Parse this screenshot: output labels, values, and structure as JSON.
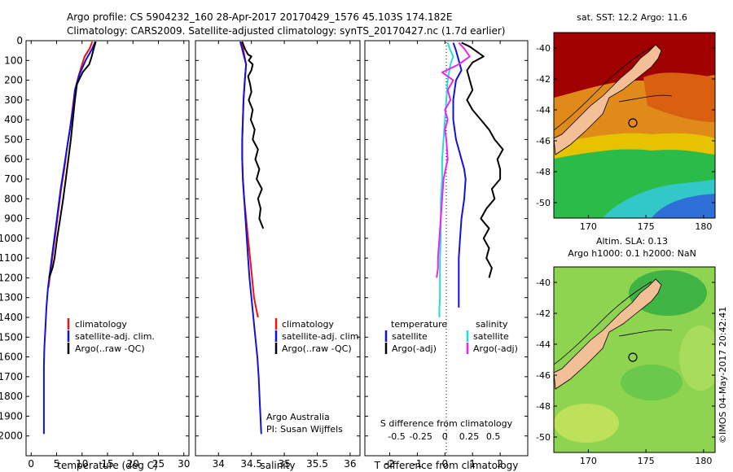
{
  "header": {
    "line1": "Argo profile: CS 5904232_160 28-Apr-2017 20170429_1576 45.103S 174.182E",
    "line2": "Climatology: CARS2009. Satellite-adjusted climatology: synTS_20170427.nc (1.7d earlier)"
  },
  "colors": {
    "climatology": "#ee1111",
    "satellite_adj": "#1111dd",
    "argo": "#000000",
    "sal_satellite": "#22dddd",
    "sal_argo": "#ee22ee"
  },
  "chart_data": [
    {
      "id": "temperature",
      "type": "line",
      "xlabel": "temperature (deg C)",
      "xlim": [
        -1,
        31
      ],
      "xticks": [
        0,
        5,
        10,
        15,
        20,
        25,
        30
      ],
      "ylim": [
        2100,
        0
      ],
      "yticks": [
        0,
        100,
        200,
        300,
        400,
        500,
        600,
        700,
        800,
        900,
        1000,
        1100,
        1200,
        1300,
        1400,
        1500,
        1600,
        1700,
        1800,
        1900,
        2000
      ],
      "legend": [
        "climatology",
        "satellite-adj. clim.",
        "Argo(..raw -QC)"
      ],
      "series": [
        {
          "name": "climatology",
          "color": "climatology",
          "x": [
            12.0,
            11.5,
            10.5,
            10.0,
            9.3,
            8.6,
            8.1,
            7.6,
            7.0,
            6.5,
            5.9,
            5.4,
            4.9,
            4.4,
            3.9,
            3.4
          ],
          "y": [
            5,
            40,
            80,
            120,
            180,
            250,
            350,
            450,
            550,
            650,
            750,
            850,
            950,
            1050,
            1150,
            1250
          ]
        },
        {
          "name": "satellite-adj. clim.",
          "color": "satellite_adj",
          "x": [
            12.6,
            12.0,
            10.7,
            9.5,
            8.6,
            8.2,
            7.6,
            7.0,
            6.4,
            5.8,
            5.3,
            4.8,
            4.3,
            3.8,
            3.3,
            3.0,
            2.8,
            2.6,
            2.5,
            2.5,
            2.5,
            2.5
          ],
          "y": [
            5,
            40,
            100,
            170,
            250,
            350,
            450,
            550,
            650,
            750,
            850,
            950,
            1050,
            1150,
            1250,
            1350,
            1450,
            1550,
            1650,
            1750,
            1850,
            1990
          ]
        },
        {
          "name": "Argo(..raw -QC)",
          "color": "argo",
          "x": [
            12.7,
            12.3,
            11.9,
            11.4,
            10.1,
            9.0,
            8.6,
            8.2,
            7.8,
            7.3,
            6.8,
            6.3,
            5.7,
            5.1,
            4.6,
            4.2,
            3.8,
            3.5
          ],
          "y": [
            5,
            40,
            80,
            120,
            160,
            220,
            300,
            400,
            500,
            600,
            700,
            800,
            900,
            1000,
            1100,
            1150,
            1180,
            1200
          ]
        }
      ],
      "annotations": []
    },
    {
      "id": "salinity",
      "type": "line",
      "xlabel": "salinity",
      "xlim": [
        33.65,
        36.15
      ],
      "xticks": [
        34,
        34.5,
        35,
        35.5,
        36
      ],
      "ylim": [
        2100,
        0
      ],
      "legend": [
        "climatology",
        "satellite-adj. clim.",
        "Argo(..raw -QC)"
      ],
      "series": [
        {
          "name": "climatology",
          "color": "climatology",
          "x": [
            34.35,
            34.37,
            34.39,
            34.42,
            34.4,
            34.38,
            34.37,
            34.36,
            34.36,
            34.37,
            34.39,
            34.42,
            34.45,
            34.48,
            34.51,
            34.54,
            34.57,
            34.6
          ],
          "y": [
            5,
            30,
            70,
            120,
            200,
            300,
            400,
            500,
            600,
            700,
            800,
            900,
            1000,
            1100,
            1200,
            1300,
            1350,
            1400
          ]
        },
        {
          "name": "satellite-adj. clim.",
          "color": "satellite_adj",
          "x": [
            34.33,
            34.35,
            34.38,
            34.42,
            34.4,
            34.38,
            34.37,
            34.36,
            34.36,
            34.37,
            34.39,
            34.41,
            34.43,
            34.45,
            34.47,
            34.5,
            34.53,
            34.56,
            34.59,
            34.61,
            34.63,
            34.65
          ],
          "y": [
            5,
            30,
            70,
            120,
            200,
            300,
            400,
            500,
            600,
            700,
            800,
            900,
            1000,
            1100,
            1200,
            1300,
            1400,
            1500,
            1600,
            1700,
            1850,
            1990
          ]
        },
        {
          "name": "Argo(..raw -QC)",
          "color": "argo",
          "x": [
            34.36,
            34.4,
            34.45,
            34.5,
            34.46,
            34.52,
            34.5,
            34.45,
            34.48,
            34.5,
            34.46,
            34.52,
            34.49,
            34.55,
            34.52,
            34.6,
            34.56,
            34.62,
            34.58,
            34.66,
            34.6,
            34.64,
            34.62,
            34.68
          ],
          "y": [
            5,
            40,
            70,
            80,
            100,
            120,
            150,
            180,
            220,
            260,
            300,
            350,
            400,
            450,
            500,
            550,
            600,
            650,
            700,
            750,
            800,
            850,
            900,
            950
          ]
        }
      ],
      "annotations": [
        "Argo Australia",
        "PI: Susan Wijffels"
      ]
    },
    {
      "id": "difference",
      "type": "line",
      "xlabel": "T difference from climatology",
      "xlabel_top": "S difference from climatology",
      "xlim": [
        -2.9,
        3.0
      ],
      "xticks": [
        -2,
        -1,
        0,
        1,
        2
      ],
      "sticks": [
        "-0.5",
        "-0.25",
        "0",
        "0.25",
        "0.5"
      ],
      "sticks_x": [
        -1.75,
        -0.875,
        0,
        0.875,
        1.75
      ],
      "ylim": [
        2100,
        0
      ],
      "legend_headers": [
        "temperature",
        "salinity"
      ],
      "legend": [
        "satellite",
        "Argo(-adj)",
        "satellite",
        "Argo(-adj)"
      ],
      "series": [
        {
          "name": "satellite",
          "color": "satellite_adj",
          "x": [
            0.3,
            0.4,
            0.5,
            0.6,
            0.4,
            0.3,
            0.3,
            0.4,
            0.5,
            0.6,
            0.7,
            0.75,
            0.7,
            0.6,
            0.55,
            0.5,
            0.5,
            0.5,
            0.5
          ],
          "y": [
            10,
            50,
            100,
            150,
            200,
            300,
            400,
            500,
            550,
            600,
            650,
            700,
            800,
            900,
            1000,
            1100,
            1200,
            1300,
            1350
          ]
        },
        {
          "name": "Argo(-adj)",
          "color": "argo",
          "x": [
            0.6,
            0.9,
            1.2,
            1.4,
            1.0,
            0.8,
            0.9,
            1.0,
            0.8,
            1.0,
            1.3,
            1.6,
            1.8,
            2.1,
            1.9,
            2.0,
            2.0,
            1.7,
            1.8,
            1.5,
            1.3,
            1.6,
            1.4,
            1.6,
            1.5,
            1.7,
            1.6
          ],
          "y": [
            10,
            30,
            60,
            80,
            110,
            150,
            200,
            250,
            300,
            350,
            400,
            450,
            500,
            550,
            600,
            650,
            700,
            750,
            800,
            850,
            900,
            950,
            1000,
            1050,
            1100,
            1150,
            1200
          ]
        },
        {
          "name": "satellite",
          "color": "sal_satellite",
          "x": [
            0.1,
            0.2,
            0.3,
            0.2,
            0.1,
            0.05,
            0.0,
            -0.05,
            -0.1,
            -0.1,
            -0.15,
            -0.15,
            -0.15,
            -0.18,
            -0.18,
            -0.18,
            -0.2,
            -0.2
          ],
          "y": [
            10,
            50,
            80,
            120,
            200,
            300,
            400,
            500,
            600,
            700,
            800,
            900,
            1000,
            1100,
            1200,
            1300,
            1350,
            1400
          ]
        },
        {
          "name": "Argo(-adj)",
          "color": "sal_argo",
          "x": [
            0.5,
            0.7,
            0.9,
            0.5,
            -0.1,
            0.3,
            0.1,
            0.2,
            0.0,
            0.1,
            0.0,
            0.05,
            0.1,
            -0.05,
            -0.1,
            -0.15,
            -0.2,
            -0.25,
            -0.25,
            -0.3
          ],
          "y": [
            10,
            40,
            80,
            120,
            160,
            200,
            250,
            300,
            350,
            400,
            450,
            500,
            600,
            700,
            800,
            900,
            1000,
            1100,
            1150,
            1200
          ]
        }
      ],
      "annotations": []
    },
    {
      "id": "sst_map",
      "type": "heatmap",
      "title": "sat. SST: 12.2  Argo: 11.6",
      "xlim": [
        167,
        181
      ],
      "xticks": [
        170,
        175,
        180
      ],
      "ylim": [
        -51,
        -39
      ],
      "yticks": [
        -40,
        -42,
        -44,
        -46,
        -48,
        -50
      ],
      "marker": {
        "lon": 174.182,
        "lat": -45.103
      }
    },
    {
      "id": "sla_map",
      "type": "heatmap",
      "title": "Altim. SLA: 0.13",
      "title2": "Argo h1000: 0.1   h2000: NaN",
      "xlim": [
        167,
        181
      ],
      "xticks": [
        170,
        175,
        180
      ],
      "ylim": [
        -51,
        -39
      ],
      "yticks": [
        -40,
        -42,
        -44,
        -46,
        -48,
        -50
      ],
      "marker": {
        "lon": 174.182,
        "lat": -45.103
      }
    }
  ],
  "footer": {
    "credit": "©IMOS 04-May-2017 20:42:41"
  }
}
